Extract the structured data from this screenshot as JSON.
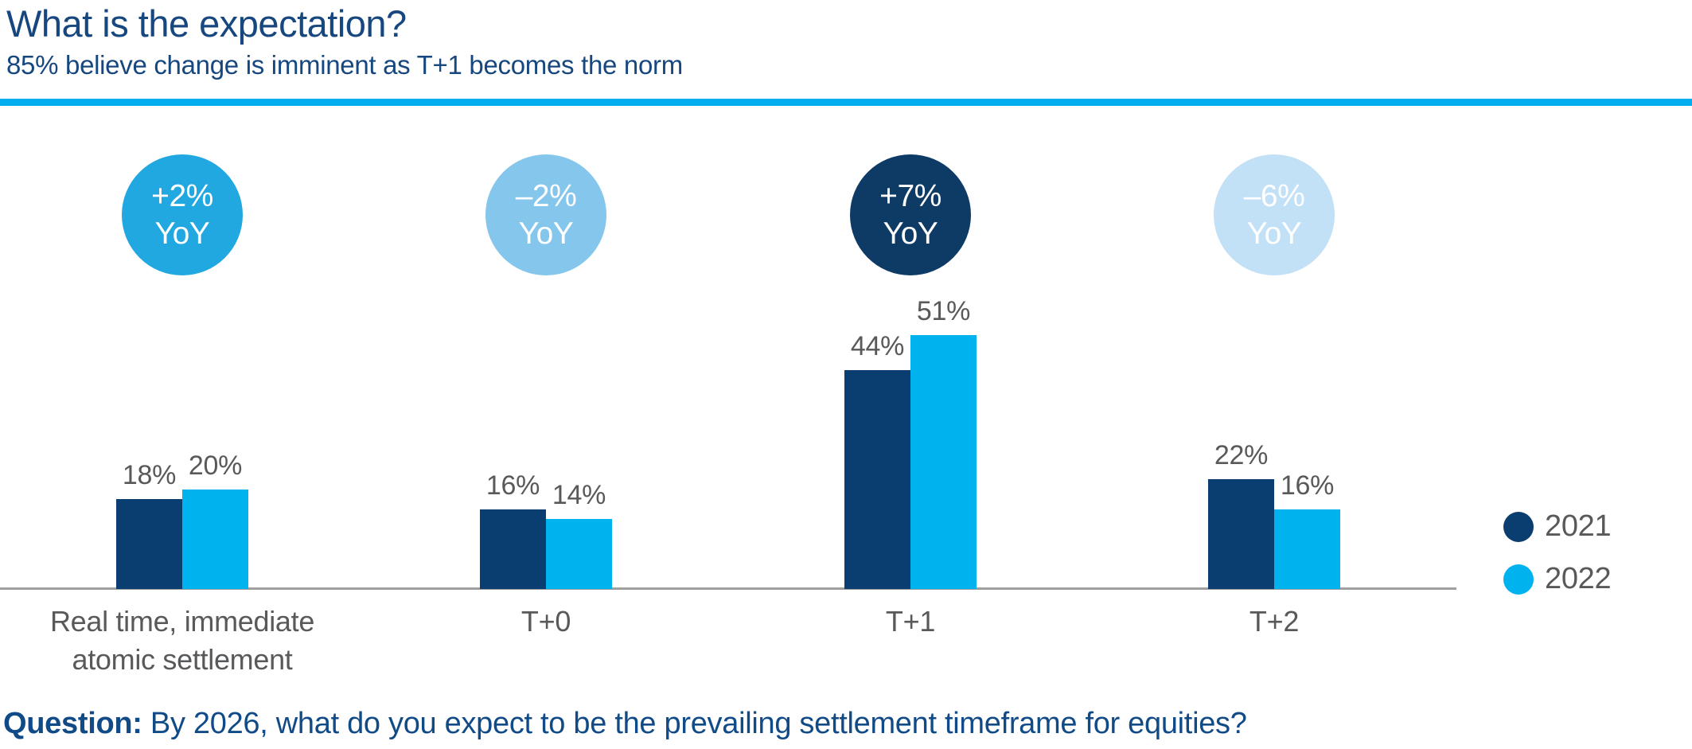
{
  "header": {
    "title": "What is the expectation?",
    "subtitle": "85% believe change is imminent as T+1 becomes the norm"
  },
  "colors": {
    "accent_divider": "#00AEEF",
    "heading_navy": "#17477F",
    "question_navy": "#114B87",
    "text_gray": "#58595B",
    "axis_line": "#A0A0A0",
    "navy_2021": "#0A3D70",
    "cyan_2022": "#00B2EE",
    "yoy_badge_colors": [
      "#21A8E0",
      "#85C6EC",
      "#0E3A66",
      "#C2E0F6"
    ],
    "yoy_text": "#FFFFFF"
  },
  "chart_data": {
    "type": "bar",
    "title": "What is the expectation?",
    "subtitle": "85% believe change is imminent as T+1 becomes the norm",
    "categories": [
      "Real time, immediate\natomic settlement",
      "T+0",
      "T+1",
      "T+2"
    ],
    "category_keys": [
      "realtime",
      "t0",
      "t1",
      "t2"
    ],
    "series": [
      {
        "name": "2021",
        "color": "#0A3D70",
        "values": [
          18,
          16,
          44,
          22
        ]
      },
      {
        "name": "2022",
        "color": "#00B2EE",
        "values": [
          20,
          14,
          51,
          16
        ]
      }
    ],
    "value_labels": [
      [
        "18%",
        "16%",
        "44%",
        "22%"
      ],
      [
        "20%",
        "14%",
        "51%",
        "16%"
      ]
    ],
    "yoy_annotations": [
      {
        "delta": "+2%",
        "label": "YoY"
      },
      {
        "delta": "–2%",
        "label": "YoY"
      },
      {
        "delta": "+7%",
        "label": "YoY"
      },
      {
        "delta": "–6%",
        "label": "YoY"
      }
    ],
    "xlabel": "",
    "ylabel": "",
    "ylim": [
      0,
      55
    ],
    "grid": false,
    "value_suffix": "%",
    "legend_position": "right"
  },
  "legend": {
    "items": [
      {
        "label": "2021"
      },
      {
        "label": "2022"
      }
    ]
  },
  "question": {
    "prefix": "Question:",
    "text": "By 2026, what do you expect to be the prevailing settlement timeframe for equities?"
  }
}
